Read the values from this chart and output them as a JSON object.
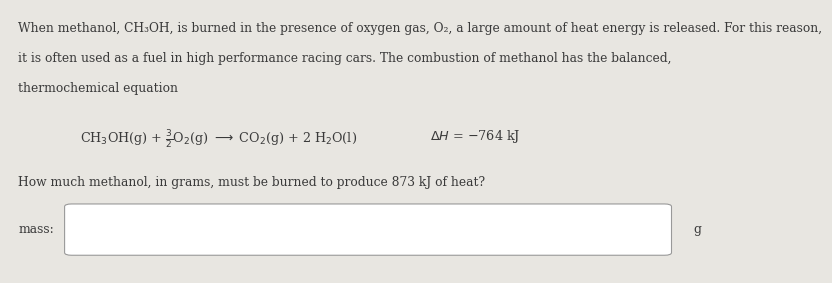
{
  "bg_color": "#e8e6e1",
  "text_color": "#3a3a3a",
  "para1": "When methanol, CH₃OH, is burned in the presence of oxygen gas, O₂, a large amount of heat energy is released. For this reason,",
  "para2": "it is often used as a fuel in high performance racing cars. The combustion of methanol has the balanced,",
  "para3": "thermochemical equation",
  "eq_main": "CH₃OH(g) + ³₂O₂(g) → CO₂(g) + 2 H₂O(l)",
  "eq_delta": "ΔH = −764 kJ",
  "question": "How much methanol, in grams, must be burned to produce 873 kJ of heat?",
  "label": "mass:",
  "unit": "g",
  "box_color": "#ffffff",
  "box_border": "#999999",
  "font_size_body": 8.8,
  "font_size_eq": 9.2
}
